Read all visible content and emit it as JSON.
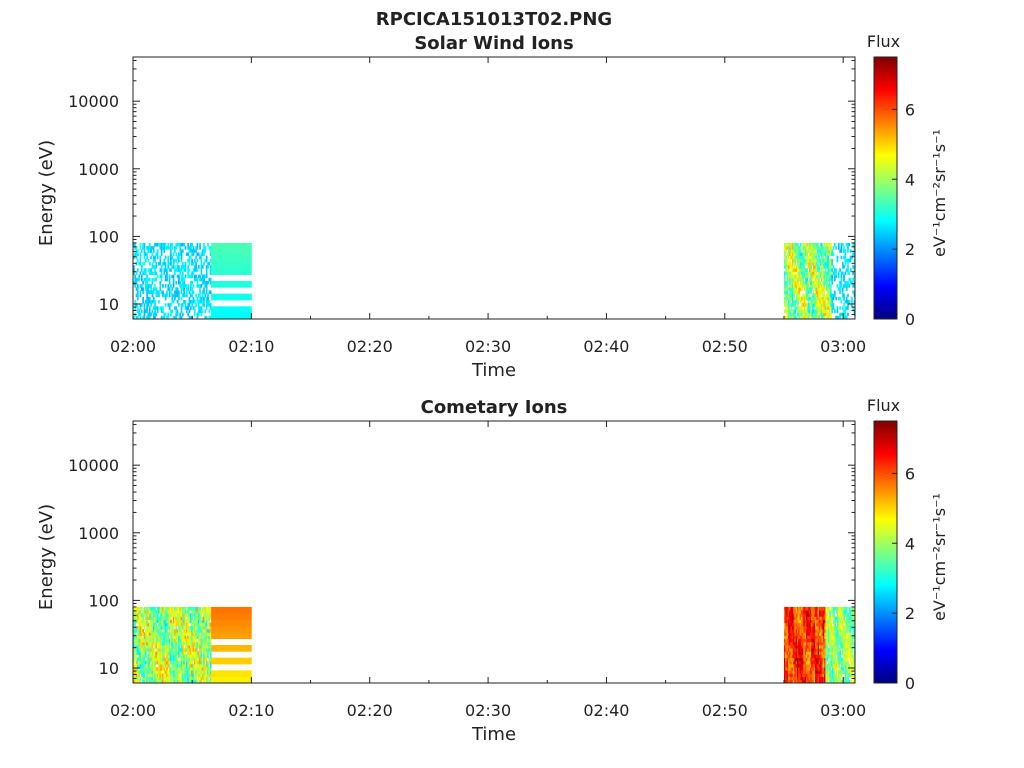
{
  "figure_title": "RPCICA151013T02.PNG",
  "colormap": [
    "#00007f",
    "#0000ff",
    "#007fff",
    "#00ffff",
    "#7fff7f",
    "#ffff00",
    "#ff7f00",
    "#ff0000",
    "#7f0000"
  ],
  "chart_data": [
    {
      "type": "heatmap",
      "title": "Solar Wind Ions",
      "xlabel": "Time",
      "ylabel": "Energy (eV)",
      "x_ticks": [
        "02:00",
        "02:10",
        "02:20",
        "02:30",
        "02:40",
        "02:50",
        "03:00"
      ],
      "xlim_minutes": [
        0,
        61
      ],
      "y_scale": "log",
      "y_ticks": [
        10,
        100,
        1000,
        10000
      ],
      "y_tick_labels": [
        "10",
        "100",
        "1000",
        "10000"
      ],
      "ylim": [
        6,
        45000
      ],
      "colorbar": {
        "label": "Flux",
        "units": "eV⁻¹cm⁻²sr⁻¹s⁻¹",
        "ticks": [
          0,
          2,
          4,
          6
        ],
        "range": [
          0,
          7.5
        ]
      },
      "regions": [
        {
          "t_start": 0,
          "t_end": 6.6,
          "e_min": 6,
          "e_max": 80,
          "flux_min": 2.2,
          "flux_max": 3.0,
          "density": 0.45,
          "texture": "sparse"
        },
        {
          "t_start": 6.6,
          "t_end": 10,
          "e_min": 6,
          "e_max": 80,
          "flux_min": 2.8,
          "flux_max": 3.4,
          "density": 1.0,
          "texture": "bands"
        },
        {
          "t_start": 55,
          "t_end": 59,
          "e_min": 6,
          "e_max": 80,
          "flux_min": 2.5,
          "flux_max": 5.4,
          "density": 0.9,
          "texture": "dense"
        },
        {
          "t_start": 59,
          "t_end": 61,
          "e_min": 6,
          "e_max": 80,
          "flux_min": 2.2,
          "flux_max": 3.0,
          "density": 0.35,
          "texture": "sparse"
        }
      ]
    },
    {
      "type": "heatmap",
      "title": "Cometary Ions",
      "xlabel": "Time",
      "ylabel": "Energy (eV)",
      "x_ticks": [
        "02:00",
        "02:10",
        "02:20",
        "02:30",
        "02:40",
        "02:50",
        "03:00"
      ],
      "xlim_minutes": [
        0,
        61
      ],
      "y_scale": "log",
      "y_ticks": [
        10,
        100,
        1000,
        10000
      ],
      "y_tick_labels": [
        "10",
        "100",
        "1000",
        "10000"
      ],
      "ylim": [
        6,
        45000
      ],
      "colorbar": {
        "label": "Flux",
        "units": "eV⁻¹cm⁻²sr⁻¹s⁻¹",
        "ticks": [
          0,
          2,
          4,
          6
        ],
        "range": [
          0,
          7.5
        ]
      },
      "regions": [
        {
          "t_start": 0,
          "t_end": 6.6,
          "e_min": 6,
          "e_max": 80,
          "flux_min": 2.5,
          "flux_max": 5.6,
          "density": 0.95,
          "texture": "dense"
        },
        {
          "t_start": 6.6,
          "t_end": 10,
          "e_min": 6,
          "e_max": 80,
          "flux_min": 4.8,
          "flux_max": 5.8,
          "density": 1.0,
          "texture": "bands"
        },
        {
          "t_start": 55,
          "t_end": 58.5,
          "e_min": 6,
          "e_max": 80,
          "flux_min": 5.0,
          "flux_max": 7.3,
          "density": 1.0,
          "texture": "dense"
        },
        {
          "t_start": 58.5,
          "t_end": 61,
          "e_min": 6,
          "e_max": 80,
          "flux_min": 2.8,
          "flux_max": 5.0,
          "density": 0.9,
          "texture": "dense"
        }
      ]
    }
  ]
}
